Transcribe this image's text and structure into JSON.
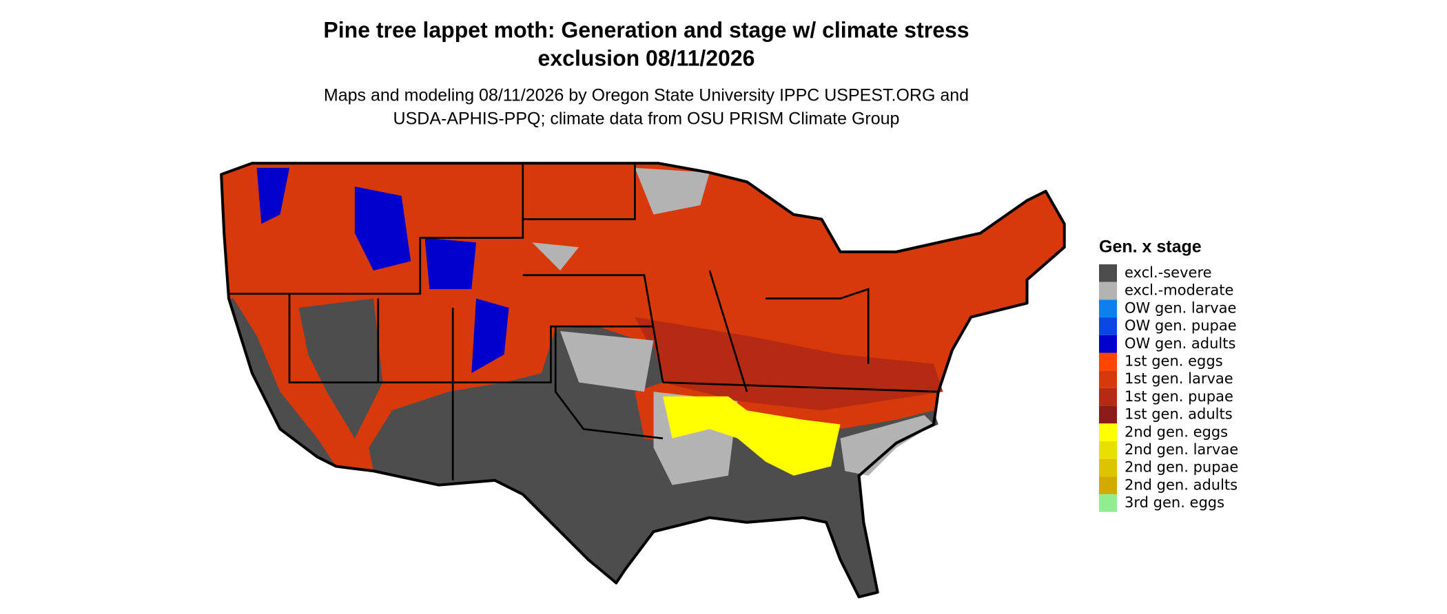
{
  "title": [
    "Pine tree lappet moth: Generation and stage w/ climate stress",
    "exclusion 08/11/2026"
  ],
  "subtitle": [
    "Maps and modeling 08/11/2026 by Oregon State University IPPC USPEST.ORG and",
    "USDA-APHIS-PPQ; climate data from OSU PRISM Climate Group"
  ],
  "legend": {
    "title": "Gen. x stage",
    "items": [
      {
        "label": "excl.-severe",
        "color": "#4d4d4d"
      },
      {
        "label": "excl.-moderate",
        "color": "#b3b3b3"
      },
      {
        "label": "OW gen. larvae",
        "color": "#0d80ee"
      },
      {
        "label": "OW gen. pupae",
        "color": "#0a46e6"
      },
      {
        "label": "OW gen. adults",
        "color": "#0000cc"
      },
      {
        "label": "1st gen. eggs",
        "color": "#ff4500"
      },
      {
        "label": "1st gen. larvae",
        "color": "#d8390a"
      },
      {
        "label": "1st gen. pupae",
        "color": "#b42a12"
      },
      {
        "label": "1st gen. adults",
        "color": "#8b1a1a"
      },
      {
        "label": "2nd gen. eggs",
        "color": "#ffff00"
      },
      {
        "label": "2nd gen. larvae",
        "color": "#e8e000"
      },
      {
        "label": "2nd gen. pupae",
        "color": "#dcc400"
      },
      {
        "label": "2nd gen. adults",
        "color": "#d4aa00"
      },
      {
        "label": "3rd gen. eggs",
        "color": "#90ee90"
      }
    ]
  }
}
